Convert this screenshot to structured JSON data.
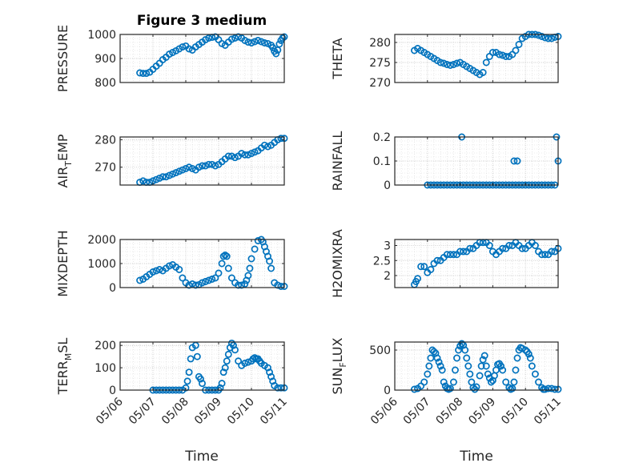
{
  "figure": {
    "title": "Figure 3 medium",
    "xlabel": "Time",
    "x_tick_labels": [
      "05/06",
      "05/07",
      "05/08",
      "05/09",
      "05/10",
      "05/11"
    ],
    "marker_color": "#0072BD"
  },
  "chart_data": [
    {
      "type": "scatter",
      "id": "pressure",
      "ylabel_main": "PRESSURE",
      "ylabel_sub": "",
      "ylabel_tail": "",
      "xlim": [
        0,
        5
      ],
      "ylim": [
        800,
        1000
      ],
      "yticks": [
        800,
        900,
        1000
      ],
      "grid": "on",
      "x": [
        0.6,
        0.7,
        0.8,
        0.9,
        1.0,
        1.1,
        1.2,
        1.3,
        1.4,
        1.5,
        1.6,
        1.7,
        1.8,
        1.9,
        2.0,
        2.1,
        2.2,
        2.3,
        2.4,
        2.5,
        2.6,
        2.7,
        2.8,
        2.9,
        3.0,
        3.1,
        3.2,
        3.3,
        3.4,
        3.5,
        3.6,
        3.7,
        3.8,
        3.9,
        4.0,
        4.1,
        4.2,
        4.3,
        4.4,
        4.5,
        4.6,
        4.65,
        4.7,
        4.75,
        4.8,
        4.85,
        4.9,
        4.95,
        5.0
      ],
      "y": [
        840,
        838,
        838,
        843,
        855,
        868,
        880,
        895,
        905,
        918,
        925,
        932,
        940,
        948,
        952,
        940,
        935,
        948,
        958,
        968,
        978,
        985,
        988,
        990,
        978,
        962,
        955,
        968,
        980,
        985,
        990,
        985,
        975,
        968,
        965,
        970,
        975,
        970,
        965,
        962,
        955,
        945,
        930,
        920,
        935,
        960,
        975,
        985,
        990
      ]
    },
    {
      "type": "scatter",
      "id": "theta",
      "ylabel_main": "THETA",
      "ylabel_sub": "",
      "ylabel_tail": "",
      "xlim": [
        0,
        5
      ],
      "ylim": [
        270,
        282
      ],
      "yticks": [
        270,
        275,
        280
      ],
      "grid": "on",
      "x": [
        0.6,
        0.7,
        0.8,
        0.9,
        1.0,
        1.1,
        1.2,
        1.3,
        1.4,
        1.5,
        1.6,
        1.7,
        1.8,
        1.9,
        2.0,
        2.1,
        2.2,
        2.3,
        2.4,
        2.5,
        2.6,
        2.7,
        2.8,
        2.9,
        3.0,
        3.1,
        3.2,
        3.3,
        3.4,
        3.5,
        3.6,
        3.7,
        3.8,
        3.9,
        4.0,
        4.1,
        4.2,
        4.3,
        4.4,
        4.5,
        4.6,
        4.7,
        4.8,
        4.9,
        5.0
      ],
      "y": [
        278,
        278.5,
        278,
        277.5,
        277,
        276.5,
        276,
        275.5,
        275,
        274.8,
        274.5,
        274.3,
        274.5,
        274.8,
        275,
        274.5,
        274,
        273.5,
        273,
        272.5,
        272,
        272.5,
        275,
        276.5,
        277.5,
        277.5,
        277,
        276.8,
        276.5,
        276.5,
        277,
        278,
        279.5,
        281,
        281.5,
        282,
        282,
        282,
        281.8,
        281.5,
        281.2,
        281,
        281,
        281.3,
        281.5
      ]
    },
    {
      "type": "scatter",
      "id": "air_temp",
      "ylabel_main": "AIR",
      "ylabel_sub": "T",
      "ylabel_tail": "EMP",
      "xlim": [
        0,
        5
      ],
      "ylim": [
        263.5,
        281
      ],
      "yticks": [
        270,
        280
      ],
      "grid": "on",
      "x": [
        0.6,
        0.7,
        0.8,
        0.9,
        1.0,
        1.1,
        1.2,
        1.3,
        1.4,
        1.5,
        1.6,
        1.7,
        1.8,
        1.9,
        2.0,
        2.1,
        2.2,
        2.3,
        2.4,
        2.5,
        2.6,
        2.7,
        2.8,
        2.9,
        3.0,
        3.1,
        3.2,
        3.3,
        3.4,
        3.5,
        3.6,
        3.7,
        3.8,
        3.9,
        4.0,
        4.1,
        4.2,
        4.3,
        4.4,
        4.5,
        4.6,
        4.7,
        4.8,
        4.9,
        5.0
      ],
      "y": [
        264.5,
        265,
        264.5,
        264.5,
        265,
        265.5,
        266,
        266.5,
        266.5,
        267,
        267.5,
        268,
        268.5,
        269,
        269.5,
        270,
        269.5,
        269,
        270,
        270.5,
        270.5,
        271,
        271,
        270.5,
        271,
        272,
        273,
        274,
        274,
        273.5,
        274,
        275,
        274.5,
        274.5,
        275,
        275.5,
        276,
        277,
        278,
        277.5,
        278,
        279,
        280,
        280.5,
        280.5
      ]
    },
    {
      "type": "scatter",
      "id": "rainfall",
      "ylabel_main": "RAINFALL",
      "ylabel_sub": "",
      "ylabel_tail": "",
      "xlim": [
        0,
        5
      ],
      "ylim": [
        0,
        0.2
      ],
      "yticks": [
        0,
        0.1,
        0.2
      ],
      "grid": "on",
      "x": [
        1.0,
        1.1,
        1.2,
        1.3,
        1.4,
        1.5,
        1.6,
        1.7,
        1.8,
        1.9,
        2.0,
        2.05,
        2.1,
        2.2,
        2.3,
        2.4,
        2.5,
        2.6,
        2.7,
        2.8,
        2.9,
        3.0,
        3.1,
        3.2,
        3.3,
        3.4,
        3.5,
        3.6,
        3.65,
        3.7,
        3.75,
        3.8,
        3.9,
        4.0,
        4.1,
        4.2,
        4.3,
        4.4,
        4.5,
        4.6,
        4.7,
        4.8,
        4.9,
        4.95,
        5.0
      ],
      "y": [
        0,
        0,
        0,
        0,
        0,
        0,
        0,
        0,
        0,
        0,
        0,
        0.2,
        0,
        0,
        0,
        0,
        0,
        0,
        0,
        0,
        0,
        0,
        0,
        0,
        0,
        0,
        0,
        0,
        0.1,
        0,
        0.1,
        0,
        0,
        0,
        0,
        0,
        0,
        0,
        0,
        0,
        0,
        0,
        0,
        0.2,
        0.1
      ]
    },
    {
      "type": "scatter",
      "id": "mixdepth",
      "ylabel_main": "MIXDEPTH",
      "ylabel_sub": "",
      "ylabel_tail": "",
      "xlim": [
        0,
        5
      ],
      "ylim": [
        0,
        2000
      ],
      "yticks": [
        0,
        1000,
        2000
      ],
      "grid": "on",
      "x": [
        0.6,
        0.7,
        0.8,
        0.9,
        1.0,
        1.1,
        1.2,
        1.3,
        1.4,
        1.5,
        1.6,
        1.7,
        1.8,
        1.9,
        2.0,
        2.1,
        2.2,
        2.3,
        2.4,
        2.5,
        2.6,
        2.7,
        2.8,
        2.9,
        3.0,
        3.1,
        3.15,
        3.2,
        3.25,
        3.3,
        3.4,
        3.5,
        3.6,
        3.7,
        3.8,
        3.85,
        3.9,
        3.95,
        4.0,
        4.1,
        4.2,
        4.3,
        4.35,
        4.4,
        4.45,
        4.5,
        4.55,
        4.6,
        4.7,
        4.8,
        4.9,
        5.0
      ],
      "y": [
        300,
        350,
        450,
        550,
        650,
        700,
        750,
        700,
        800,
        900,
        950,
        850,
        750,
        400,
        200,
        100,
        150,
        100,
        120,
        200,
        250,
        300,
        350,
        400,
        600,
        1000,
        1300,
        1350,
        1300,
        800,
        400,
        200,
        100,
        100,
        150,
        300,
        500,
        800,
        1200,
        1600,
        1950,
        2000,
        1900,
        1700,
        1500,
        1300,
        1100,
        800,
        200,
        100,
        50,
        50
      ]
    },
    {
      "type": "scatter",
      "id": "h2omixra",
      "ylabel_main": "H2OMIXRA",
      "ylabel_sub": "",
      "ylabel_tail": "",
      "xlim": [
        0,
        5
      ],
      "ylim": [
        1.6,
        3.2
      ],
      "yticks": [
        2,
        2.5,
        3
      ],
      "grid": "on",
      "x": [
        0.6,
        0.65,
        0.7,
        0.8,
        0.9,
        1.0,
        1.1,
        1.2,
        1.3,
        1.4,
        1.5,
        1.6,
        1.7,
        1.8,
        1.9,
        2.0,
        2.1,
        2.2,
        2.3,
        2.4,
        2.5,
        2.6,
        2.7,
        2.8,
        2.9,
        3.0,
        3.1,
        3.2,
        3.3,
        3.4,
        3.5,
        3.6,
        3.7,
        3.8,
        3.9,
        4.0,
        4.1,
        4.2,
        4.3,
        4.4,
        4.5,
        4.6,
        4.7,
        4.8,
        4.9,
        5.0
      ],
      "y": [
        1.7,
        1.8,
        1.9,
        2.3,
        2.3,
        2.1,
        2.2,
        2.4,
        2.5,
        2.5,
        2.6,
        2.7,
        2.7,
        2.7,
        2.7,
        2.8,
        2.8,
        2.8,
        2.9,
        2.9,
        3.0,
        3.1,
        3.1,
        3.1,
        3.0,
        2.8,
        2.7,
        2.8,
        2.9,
        2.9,
        3.0,
        3.0,
        3.1,
        3.0,
        2.9,
        2.9,
        3.0,
        3.1,
        3.0,
        2.8,
        2.7,
        2.7,
        2.7,
        2.8,
        2.8,
        2.9
      ]
    },
    {
      "type": "scatter",
      "id": "terr_msl",
      "ylabel_main": "TERR",
      "ylabel_sub": "M",
      "ylabel_tail": "SL",
      "xlim": [
        0,
        5
      ],
      "ylim": [
        0,
        215
      ],
      "yticks": [
        0,
        100,
        200
      ],
      "grid": "on",
      "x": [
        1.0,
        1.1,
        1.2,
        1.3,
        1.4,
        1.5,
        1.6,
        1.7,
        1.8,
        1.9,
        2.0,
        2.05,
        2.1,
        2.15,
        2.2,
        2.3,
        2.35,
        2.4,
        2.45,
        2.5,
        2.6,
        2.7,
        2.8,
        2.9,
        3.0,
        3.05,
        3.1,
        3.15,
        3.2,
        3.25,
        3.3,
        3.35,
        3.4,
        3.45,
        3.5,
        3.6,
        3.7,
        3.8,
        3.9,
        4.0,
        4.05,
        4.1,
        4.15,
        4.2,
        4.25,
        4.3,
        4.4,
        4.5,
        4.55,
        4.6,
        4.65,
        4.7,
        4.8,
        4.9,
        5.0
      ],
      "y": [
        0,
        0,
        0,
        0,
        0,
        0,
        0,
        0,
        0,
        0,
        10,
        40,
        80,
        140,
        190,
        200,
        150,
        60,
        50,
        30,
        0,
        0,
        0,
        0,
        0,
        10,
        30,
        80,
        100,
        130,
        160,
        190,
        210,
        200,
        180,
        130,
        110,
        120,
        125,
        130,
        140,
        145,
        140,
        140,
        130,
        120,
        110,
        100,
        80,
        60,
        40,
        20,
        10,
        10,
        10
      ]
    },
    {
      "type": "scatter",
      "id": "sun_flux",
      "ylabel_main": "SUN",
      "ylabel_sub": "F",
      "ylabel_tail": "LUX",
      "xlim": [
        0,
        5
      ],
      "ylim": [
        0,
        600
      ],
      "yticks": [
        0,
        500
      ],
      "grid": "on",
      "x": [
        0.6,
        0.7,
        0.8,
        0.9,
        1.0,
        1.05,
        1.1,
        1.15,
        1.2,
        1.25,
        1.3,
        1.35,
        1.4,
        1.45,
        1.5,
        1.55,
        1.6,
        1.65,
        1.7,
        1.8,
        1.85,
        1.9,
        1.95,
        2.0,
        2.05,
        2.1,
        2.15,
        2.2,
        2.25,
        2.3,
        2.35,
        2.4,
        2.45,
        2.5,
        2.6,
        2.65,
        2.7,
        2.75,
        2.8,
        2.85,
        2.9,
        2.95,
        3.0,
        3.05,
        3.1,
        3.15,
        3.2,
        3.25,
        3.3,
        3.4,
        3.5,
        3.55,
        3.6,
        3.65,
        3.7,
        3.75,
        3.8,
        3.85,
        3.9,
        4.0,
        4.05,
        4.1,
        4.15,
        4.2,
        4.3,
        4.4,
        4.5,
        4.55,
        4.6,
        4.7,
        4.8,
        4.9,
        5.0
      ],
      "y": [
        10,
        20,
        50,
        100,
        200,
        300,
        400,
        500,
        480,
        460,
        400,
        350,
        300,
        250,
        100,
        50,
        20,
        10,
        20,
        100,
        250,
        400,
        500,
        550,
        580,
        560,
        500,
        400,
        300,
        200,
        100,
        30,
        10,
        40,
        180,
        300,
        380,
        430,
        300,
        200,
        150,
        100,
        120,
        180,
        250,
        320,
        330,
        300,
        250,
        100,
        30,
        10,
        20,
        100,
        250,
        400,
        500,
        530,
        520,
        500,
        480,
        450,
        400,
        300,
        200,
        100,
        30,
        10,
        10,
        20,
        20,
        10,
        10
      ]
    }
  ]
}
